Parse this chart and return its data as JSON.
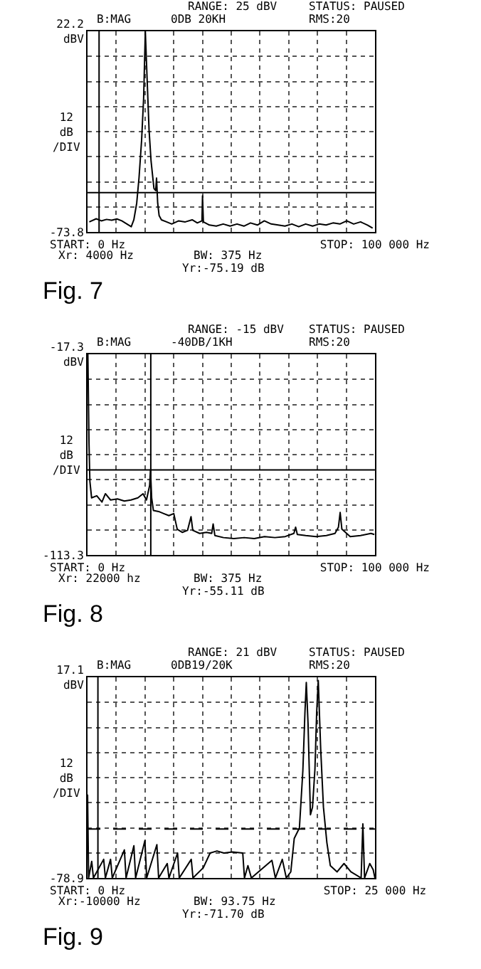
{
  "chart_data": [
    {
      "type": "line",
      "title": "Fig. 7",
      "ylabel": "12\ndB\n/DIV",
      "grid": true,
      "annotations": [
        "RANGE: 25 dBV",
        "STATUS: PAUSED",
        "B:MAG",
        "0DB 20KH",
        "RMS:20",
        "Xr: 4000 Hz",
        "BW: 375 Hz",
        "Yr:-75.19 dB"
      ],
      "xlim": [
        0,
        100000
      ],
      "xticks": [
        {
          "value": 0,
          "label": "START: 0 Hz"
        },
        {
          "value": 10000,
          "label": null
        },
        {
          "value": 20000,
          "label": null
        },
        {
          "value": 30000,
          "label": null
        },
        {
          "value": 40000,
          "label": null
        },
        {
          "value": 50000,
          "label": null
        },
        {
          "value": 60000,
          "label": null
        },
        {
          "value": 70000,
          "label": null
        },
        {
          "value": 80000,
          "label": null
        },
        {
          "value": 90000,
          "label": null
        },
        {
          "value": 100000,
          "label": "STOP: 100 000 Hz"
        }
      ],
      "ylim": [
        -73.8,
        22.2
      ],
      "yticks": [
        {
          "value": -73.8,
          "label": "-73.8"
        },
        {
          "value": -61.8,
          "label": null
        },
        {
          "value": -49.8,
          "label": null
        },
        {
          "value": -37.8,
          "label": null
        },
        {
          "value": -25.8,
          "label": null
        },
        {
          "value": -13.8,
          "label": null
        },
        {
          "value": -1.8,
          "label": null
        },
        {
          "value": 10.2,
          "label": null
        },
        {
          "value": 22.2,
          "label": "22.2\ndBV"
        }
      ],
      "ref_lines": [
        {
          "axis": "x",
          "value": 4000,
          "label": null,
          "color": "#000000"
        },
        {
          "axis": "y",
          "value": -55,
          "label": null,
          "color": "#000000"
        }
      ],
      "x": [
        600,
        3000,
        4800,
        6600,
        8400,
        10200,
        11900,
        13700,
        15200,
        16100,
        17100,
        17900,
        18800,
        19500,
        20100,
        20700,
        21400,
        22100,
        23100,
        23700,
        24000,
        24400,
        24900,
        25700,
        27500,
        29300,
        31700,
        34000,
        36400,
        38200,
        39800,
        40000,
        40300,
        42400,
        44800,
        47200,
        49600,
        52000,
        54400,
        56700,
        59100,
        61500,
        63900,
        66300,
        68700,
        71100,
        73500,
        75900,
        78300,
        80600,
        83000,
        85400,
        87800,
        90200,
        92600,
        95000,
        97400,
        99200
      ],
      "series": [
        {
          "color": "#000000",
          "values": [
            -69,
            -67.5,
            -68.5,
            -67.8,
            -68.2,
            -67.6,
            -68.5,
            -70,
            -71.3,
            -68,
            -60,
            -48,
            -30,
            -10,
            22.2,
            0,
            -25,
            -40,
            -53,
            -54,
            -48,
            -60,
            -66,
            -68,
            -69,
            -70,
            -68.5,
            -69,
            -68,
            -69.5,
            -68.5,
            -56.5,
            -69,
            -70.5,
            -71,
            -70,
            -71,
            -70,
            -71,
            -69.5,
            -70.5,
            -68.5,
            -70,
            -70.5,
            -71,
            -70,
            -71.3,
            -70,
            -71,
            -70,
            -70.5,
            -69.5,
            -70,
            -68.5,
            -70,
            -69,
            -70.5,
            -72
          ]
        }
      ]
    },
    {
      "type": "line",
      "title": "Fig. 8",
      "ylabel": "12\ndB\n/DIV",
      "grid": true,
      "annotations": [
        "RANGE: -15 dBV",
        "STATUS: PAUSED",
        "B:MAG",
        "-40DB/1KH",
        "RMS:20",
        "Xr: 22000 hz",
        "BW: 375 Hz",
        "Yr:-55.11 dB"
      ],
      "xlim": [
        0,
        100000
      ],
      "xticks": [
        {
          "value": 0,
          "label": "START: 0 Hz"
        },
        {
          "value": 10000,
          "label": null
        },
        {
          "value": 20000,
          "label": null
        },
        {
          "value": 30000,
          "label": null
        },
        {
          "value": 40000,
          "label": null
        },
        {
          "value": 50000,
          "label": null
        },
        {
          "value": 60000,
          "label": null
        },
        {
          "value": 70000,
          "label": null
        },
        {
          "value": 80000,
          "label": null
        },
        {
          "value": 90000,
          "label": null
        },
        {
          "value": 100000,
          "label": "STOP: 100 000 Hz"
        }
      ],
      "ylim": [
        -113.3,
        -17.3
      ],
      "yticks": [
        {
          "value": -113.3,
          "label": "-113.3"
        },
        {
          "value": -101.3,
          "label": null
        },
        {
          "value": -89.3,
          "label": null
        },
        {
          "value": -77.3,
          "label": null
        },
        {
          "value": -65.3,
          "label": null
        },
        {
          "value": -53.3,
          "label": null
        },
        {
          "value": -41.3,
          "label": null
        },
        {
          "value": -29.3,
          "label": null
        },
        {
          "value": -17.3,
          "label": "-17.3\ndBV"
        }
      ],
      "ref_lines": [
        {
          "axis": "x",
          "value": 22000,
          "label": null,
          "color": "#000000"
        },
        {
          "axis": "y",
          "value": -72.6,
          "label": null,
          "color": "#000000"
        }
      ],
      "x": [
        100,
        500,
        800,
        1400,
        3200,
        5000,
        6200,
        8000,
        10400,
        12800,
        15100,
        17500,
        19300,
        20500,
        21600,
        21900,
        22300,
        22900,
        24700,
        26500,
        28300,
        30000,
        31200,
        33000,
        34800,
        36000,
        36600,
        39000,
        41400,
        43200,
        43700,
        44300,
        47300,
        50900,
        54500,
        58000,
        61600,
        65200,
        68800,
        71800,
        72400,
        73000,
        75900,
        79500,
        83100,
        86100,
        87300,
        87900,
        88500,
        91400,
        95000,
        98600,
        99800
      ],
      "series": [
        {
          "color": "#000000",
          "values": [
            -17.3,
            -60,
            -78,
            -86,
            -85,
            -88,
            -84,
            -87,
            -86.5,
            -87.5,
            -87,
            -86,
            -84,
            -87,
            -80,
            -72.5,
            -86,
            -92,
            -92.5,
            -93.5,
            -94.5,
            -93.5,
            -101,
            -102.5,
            -101.5,
            -95,
            -101.5,
            -103,
            -102.5,
            -103,
            -98.5,
            -104,
            -105,
            -105.5,
            -105,
            -105.5,
            -104.5,
            -105,
            -104.5,
            -103,
            -100,
            -103.5,
            -104,
            -104.5,
            -104,
            -103,
            -100,
            -93,
            -101,
            -104.5,
            -104,
            -103,
            -103.5
          ]
        }
      ]
    },
    {
      "type": "line",
      "title": "Fig. 9",
      "ylabel": "12\ndB\n/DIV",
      "grid": true,
      "annotations": [
        "RANGE: 21 dBV",
        "STATUS: PAUSED",
        "B:MAG",
        "0DB19/20K",
        "RMS:20",
        "Xr:-10000 Hz",
        "BW: 93.75 Hz",
        "Yr:-71.70 dB"
      ],
      "xlim": [
        0,
        25000
      ],
      "xticks": [
        {
          "value": 0,
          "label": "START: 0 Hz"
        },
        {
          "value": 2500,
          "label": null
        },
        {
          "value": 5000,
          "label": null
        },
        {
          "value": 7500,
          "label": null
        },
        {
          "value": 10000,
          "label": null
        },
        {
          "value": 12500,
          "label": null
        },
        {
          "value": 15000,
          "label": null
        },
        {
          "value": 17500,
          "label": null
        },
        {
          "value": 20000,
          "label": null
        },
        {
          "value": 22500,
          "label": null
        },
        {
          "value": 25000,
          "label": "STOP: 25 000 Hz"
        }
      ],
      "ylim": [
        -78.9,
        17.1
      ],
      "yticks": [
        {
          "value": -78.9,
          "label": "-78.9"
        },
        {
          "value": -66.9,
          "label": null
        },
        {
          "value": -54.9,
          "label": null
        },
        {
          "value": -42.9,
          "label": null
        },
        {
          "value": -30.9,
          "label": null
        },
        {
          "value": -18.9,
          "label": null
        },
        {
          "value": -6.9,
          "label": null
        },
        {
          "value": 5.1,
          "label": null
        },
        {
          "value": 17.1,
          "label": "17.1\ndBV"
        }
      ],
      "ref_lines": [
        {
          "axis": "x",
          "value": 900,
          "label": null,
          "color": "#000000"
        },
        {
          "axis": "y",
          "value": -55.5,
          "label": null,
          "color": "#000000",
          "line_style": "dashed"
        }
      ],
      "x": [
        0,
        90,
        360,
        510,
        1400,
        1550,
        2000,
        2150,
        3200,
        3350,
        4030,
        4180,
        4990,
        5140,
        6030,
        6180,
        6930,
        7080,
        7830,
        7980,
        9020,
        9170,
        10070,
        10660,
        11260,
        11860,
        12600,
        13500,
        13650,
        13950,
        14250,
        16040,
        16340,
        16940,
        17290,
        17680,
        17980,
        18430,
        18730,
        18910,
        19030,
        19180,
        19390,
        19570,
        19780,
        19930,
        20070,
        20280,
        20520,
        20820,
        21120,
        21710,
        22310,
        22910,
        23800,
        23950,
        24100,
        24550,
        24850,
        25000
      ],
      "series": [
        {
          "color": "#000000",
          "values": [
            -39,
            -78.9,
            -71,
            -78.9,
            -70,
            -78.9,
            -70,
            -78.9,
            -65.5,
            -78.9,
            -63.5,
            -78.9,
            -61,
            -78.9,
            -63,
            -78.9,
            -72,
            -78.9,
            -67,
            -78.9,
            -70,
            -78.9,
            -74,
            -67,
            -66,
            -67,
            -66.5,
            -67,
            -78.9,
            -73,
            -78.9,
            -70.5,
            -78.9,
            -70,
            -78.9,
            -76,
            -60,
            -55,
            -27.6,
            0,
            14.6,
            -5,
            -48.7,
            -45,
            -27,
            0,
            15.6,
            -17,
            -45,
            -62,
            -73,
            -76,
            -72,
            -76,
            -78.9,
            -53,
            -78.9,
            -72,
            -75,
            -78.9
          ]
        }
      ]
    }
  ]
}
